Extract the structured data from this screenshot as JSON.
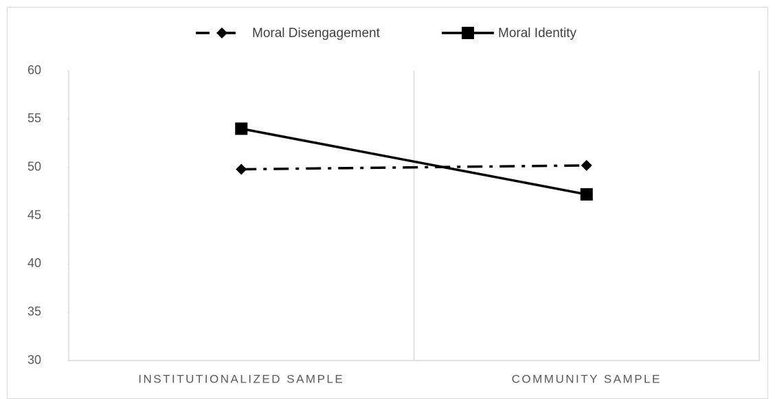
{
  "chart_data": {
    "type": "line",
    "categories": [
      "INSTITUTIONALIZED SAMPLE",
      "COMMUNITY SAMPLE"
    ],
    "series": [
      {
        "name": "Moral Disengagement",
        "color": "#000000",
        "line_style": "dashdot",
        "marker": "diamond",
        "values": [
          49.8,
          50.2
        ]
      },
      {
        "name": "Moral Identity",
        "color": "#000000",
        "line_style": "solid",
        "marker": "square",
        "values": [
          54,
          47.2
        ]
      }
    ],
    "ylim": [
      30,
      60
    ],
    "yticks": [
      30,
      35,
      40,
      45,
      50,
      55,
      60
    ],
    "legend": "top"
  }
}
